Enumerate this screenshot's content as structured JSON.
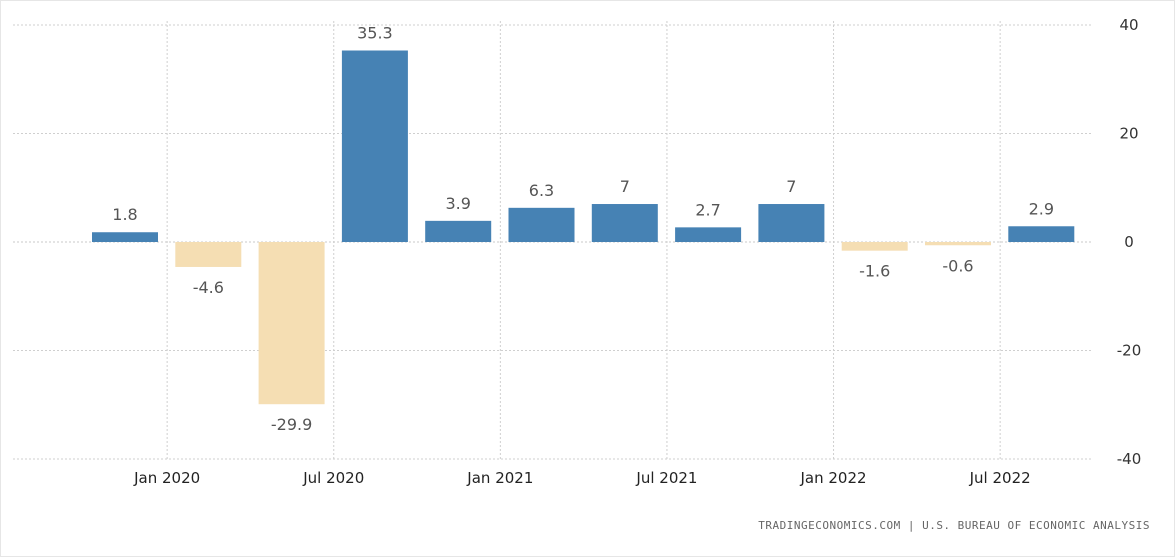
{
  "chart_data": {
    "type": "bar",
    "categories": [
      "2019 Q4",
      "2020 Q1",
      "2020 Q2",
      "2020 Q3",
      "2020 Q4",
      "2021 Q1",
      "2021 Q2",
      "2021 Q3",
      "2021 Q4",
      "2022 Q1",
      "2022 Q2",
      "2022 Q3"
    ],
    "values": [
      1.8,
      -4.6,
      -29.9,
      35.3,
      3.9,
      6.3,
      7,
      2.7,
      7,
      -1.6,
      -0.6,
      2.9
    ],
    "data_labels": [
      "1.8",
      "-4.6",
      "-29.9",
      "35.3",
      "3.9",
      "6.3",
      "7",
      "2.7",
      "7",
      "-1.6",
      "-0.6",
      "2.9"
    ],
    "x_tick_labels": [
      "Jan 2020",
      "Jul 2020",
      "Jan 2021",
      "Jul 2021",
      "Jan 2022",
      "Jul 2022"
    ],
    "y_ticks": [
      40,
      20,
      0,
      -20,
      -40
    ],
    "ylim": [
      -40,
      40
    ],
    "y_axis_position": "right",
    "grid": true,
    "title": "",
    "xlabel": "",
    "ylabel": "",
    "colors": {
      "positive": "#4682b4",
      "negative": "#f5deb3"
    }
  },
  "source": "TRADINGECONOMICS.COM | U.S. BUREAU OF ECONOMIC ANALYSIS"
}
